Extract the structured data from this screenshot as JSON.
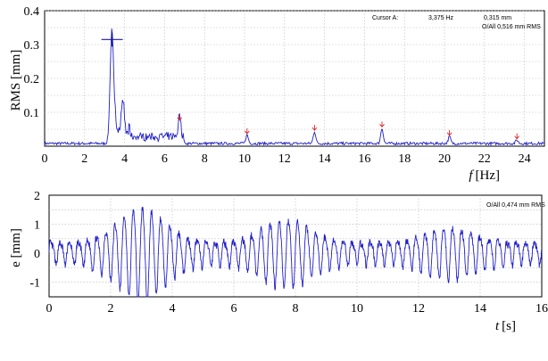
{
  "chart_data": [
    {
      "type": "line",
      "title": "",
      "xlabel": "f [Hz]",
      "xlabel_italic": "f",
      "xlabel_unit": "[Hz]",
      "ylabel": "RMS [mm]",
      "xlim": [
        0,
        25
      ],
      "ylim": [
        0,
        0.4
      ],
      "xticks": [
        "0",
        "2",
        "4",
        "6",
        "8",
        "10",
        "12",
        "14",
        "16",
        "18",
        "20",
        "22",
        "24"
      ],
      "yticks": [
        "0.1",
        "0.2",
        "0.3",
        "0.4"
      ],
      "grid": true,
      "color": "#2020c8",
      "cursor": {
        "label": "Cursor A:",
        "freq": "3,375 Hz",
        "value": "0,315 mm",
        "x": 3.375,
        "y": 0.315
      },
      "overall": "O/All 0,516 mm RMS",
      "harmonic_markers": [
        6.75,
        10.125,
        13.5,
        16.875,
        20.25,
        23.625
      ],
      "harmonic_marker_color": "#e02020",
      "peaks": [
        {
          "x": 3.375,
          "y": 0.315
        },
        {
          "x": 3.9,
          "y": 0.1
        },
        {
          "x": 6.75,
          "y": 0.065
        },
        {
          "x": 10.125,
          "y": 0.025
        },
        {
          "x": 13.5,
          "y": 0.035
        },
        {
          "x": 16.875,
          "y": 0.045
        },
        {
          "x": 20.25,
          "y": 0.02
        },
        {
          "x": 23.625,
          "y": 0.01
        }
      ]
    },
    {
      "type": "line",
      "title": "",
      "xlabel": "t [s]",
      "xlabel_italic": "t",
      "xlabel_unit": "[s]",
      "ylabel": "e [mm]",
      "xlim": [
        0,
        16
      ],
      "ylim": [
        -1.5,
        2
      ],
      "xticks": [
        "0",
        "2",
        "4",
        "6",
        "8",
        "10",
        "12",
        "14",
        "16"
      ],
      "yticks": [
        "-1",
        "0",
        "1",
        "2"
      ],
      "grid": true,
      "color": "#2020c8",
      "overall": "O/All 0,474 mm RMS",
      "dominant_frequency_hz": 3.375,
      "bursts": [
        {
          "t_center": 3.0,
          "amplitude": 1.6
        },
        {
          "t_center": 7.7,
          "amplitude": 1.2
        },
        {
          "t_center": 13.0,
          "amplitude": 0.9
        }
      ]
    }
  ]
}
